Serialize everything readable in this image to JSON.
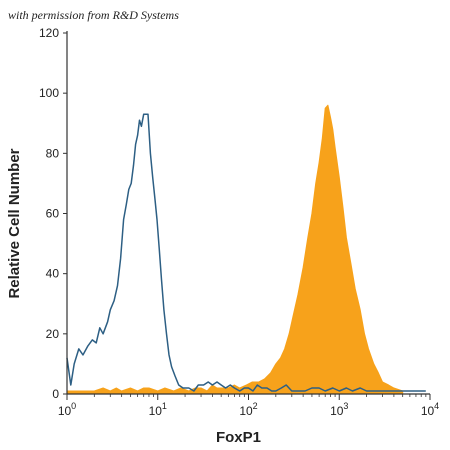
{
  "credit_text": "with permission from R&D Systems",
  "colors": {
    "isotype": "#2d5f84",
    "foxp1": "#f7a21b",
    "axis": "#333333"
  },
  "chart_data": {
    "type": "area",
    "xlabel": "FoxP1",
    "ylabel": "Relative Cell Number",
    "x_scale": "log",
    "xlim": [
      1,
      10000
    ],
    "ylim": [
      0,
      120
    ],
    "x_ticks": [
      {
        "value": 1,
        "base": "10",
        "exp": "0"
      },
      {
        "value": 10,
        "base": "10",
        "exp": "1"
      },
      {
        "value": 100,
        "base": "10",
        "exp": "2"
      },
      {
        "value": 1000,
        "base": "10",
        "exp": "3"
      },
      {
        "value": 10000,
        "base": "10",
        "exp": "4"
      }
    ],
    "y_ticks": [
      0,
      20,
      40,
      60,
      80,
      100,
      120
    ],
    "grid": false,
    "series": [
      {
        "style": "outline",
        "color": "#2d5f84",
        "points": [
          [
            1.0,
            12
          ],
          [
            1.1,
            3
          ],
          [
            1.2,
            10
          ],
          [
            1.35,
            15
          ],
          [
            1.5,
            13
          ],
          [
            1.7,
            16
          ],
          [
            1.9,
            18
          ],
          [
            2.1,
            17
          ],
          [
            2.3,
            22
          ],
          [
            2.5,
            20
          ],
          [
            2.8,
            24
          ],
          [
            3.0,
            28
          ],
          [
            3.3,
            31
          ],
          [
            3.6,
            36
          ],
          [
            3.9,
            45
          ],
          [
            4.2,
            58
          ],
          [
            4.5,
            63
          ],
          [
            4.8,
            68
          ],
          [
            5.1,
            70
          ],
          [
            5.4,
            76
          ],
          [
            5.7,
            83
          ],
          [
            6.0,
            86
          ],
          [
            6.3,
            91
          ],
          [
            6.6,
            89
          ],
          [
            7.0,
            93
          ],
          [
            7.4,
            93
          ],
          [
            7.8,
            93
          ],
          [
            8.3,
            80
          ],
          [
            8.8,
            72
          ],
          [
            9.3,
            65
          ],
          [
            9.8,
            58
          ],
          [
            10.4,
            48
          ],
          [
            11.0,
            38
          ],
          [
            11.7,
            28
          ],
          [
            12.5,
            20
          ],
          [
            13.3,
            13
          ],
          [
            14.2,
            9
          ],
          [
            15.5,
            6
          ],
          [
            17,
            3
          ],
          [
            19,
            2
          ],
          [
            22,
            2
          ],
          [
            25,
            1
          ],
          [
            28,
            3
          ],
          [
            32,
            3
          ],
          [
            36,
            4
          ],
          [
            40,
            3
          ],
          [
            45,
            4
          ],
          [
            50,
            3
          ],
          [
            56,
            2
          ],
          [
            63,
            3
          ],
          [
            70,
            2
          ],
          [
            80,
            1
          ],
          [
            90,
            2
          ],
          [
            100,
            2
          ],
          [
            112,
            1
          ],
          [
            125,
            3
          ],
          [
            140,
            2
          ],
          [
            160,
            2
          ],
          [
            180,
            1
          ],
          [
            200,
            1
          ],
          [
            230,
            2
          ],
          [
            260,
            3
          ],
          [
            300,
            1
          ],
          [
            350,
            1
          ],
          [
            420,
            1
          ],
          [
            500,
            2
          ],
          [
            600,
            2
          ],
          [
            700,
            1
          ],
          [
            850,
            2
          ],
          [
            1000,
            1
          ],
          [
            1200,
            2
          ],
          [
            1400,
            1
          ],
          [
            1700,
            2
          ],
          [
            2000,
            1
          ],
          [
            2500,
            1
          ],
          [
            3000,
            1
          ],
          [
            4000,
            1
          ],
          [
            5000,
            1
          ],
          [
            6500,
            1
          ],
          [
            8000,
            1
          ],
          [
            9000,
            1
          ]
        ]
      },
      {
        "style": "filled",
        "color": "#f7a21b",
        "points": [
          [
            1.0,
            1
          ],
          [
            1.5,
            1
          ],
          [
            2.0,
            1
          ],
          [
            2.5,
            2
          ],
          [
            3.0,
            1
          ],
          [
            3.5,
            2
          ],
          [
            4.0,
            1
          ],
          [
            5,
            2
          ],
          [
            6,
            1
          ],
          [
            7,
            2
          ],
          [
            8,
            2
          ],
          [
            10,
            1
          ],
          [
            12,
            2
          ],
          [
            15,
            1
          ],
          [
            18,
            2
          ],
          [
            22,
            1
          ],
          [
            26,
            2
          ],
          [
            30,
            2
          ],
          [
            35,
            1
          ],
          [
            40,
            3
          ],
          [
            45,
            2
          ],
          [
            50,
            2
          ],
          [
            60,
            2
          ],
          [
            70,
            3
          ],
          [
            80,
            2
          ],
          [
            95,
            3
          ],
          [
            110,
            4
          ],
          [
            130,
            4
          ],
          [
            150,
            5
          ],
          [
            175,
            7
          ],
          [
            200,
            10
          ],
          [
            225,
            12
          ],
          [
            250,
            15
          ],
          [
            280,
            20
          ],
          [
            310,
            26
          ],
          [
            350,
            33
          ],
          [
            400,
            42
          ],
          [
            450,
            52
          ],
          [
            500,
            60
          ],
          [
            550,
            70
          ],
          [
            600,
            77
          ],
          [
            650,
            85
          ],
          [
            700,
            95
          ],
          [
            750,
            96
          ],
          [
            800,
            92
          ],
          [
            850,
            88
          ],
          [
            900,
            82
          ],
          [
            1000,
            72
          ],
          [
            1100,
            62
          ],
          [
            1200,
            52
          ],
          [
            1350,
            43
          ],
          [
            1500,
            35
          ],
          [
            1700,
            28
          ],
          [
            1900,
            20
          ],
          [
            2100,
            15
          ],
          [
            2400,
            10
          ],
          [
            2700,
            7
          ],
          [
            3000,
            4
          ],
          [
            3500,
            3
          ],
          [
            4000,
            2
          ],
          [
            5000,
            1
          ]
        ]
      }
    ]
  }
}
